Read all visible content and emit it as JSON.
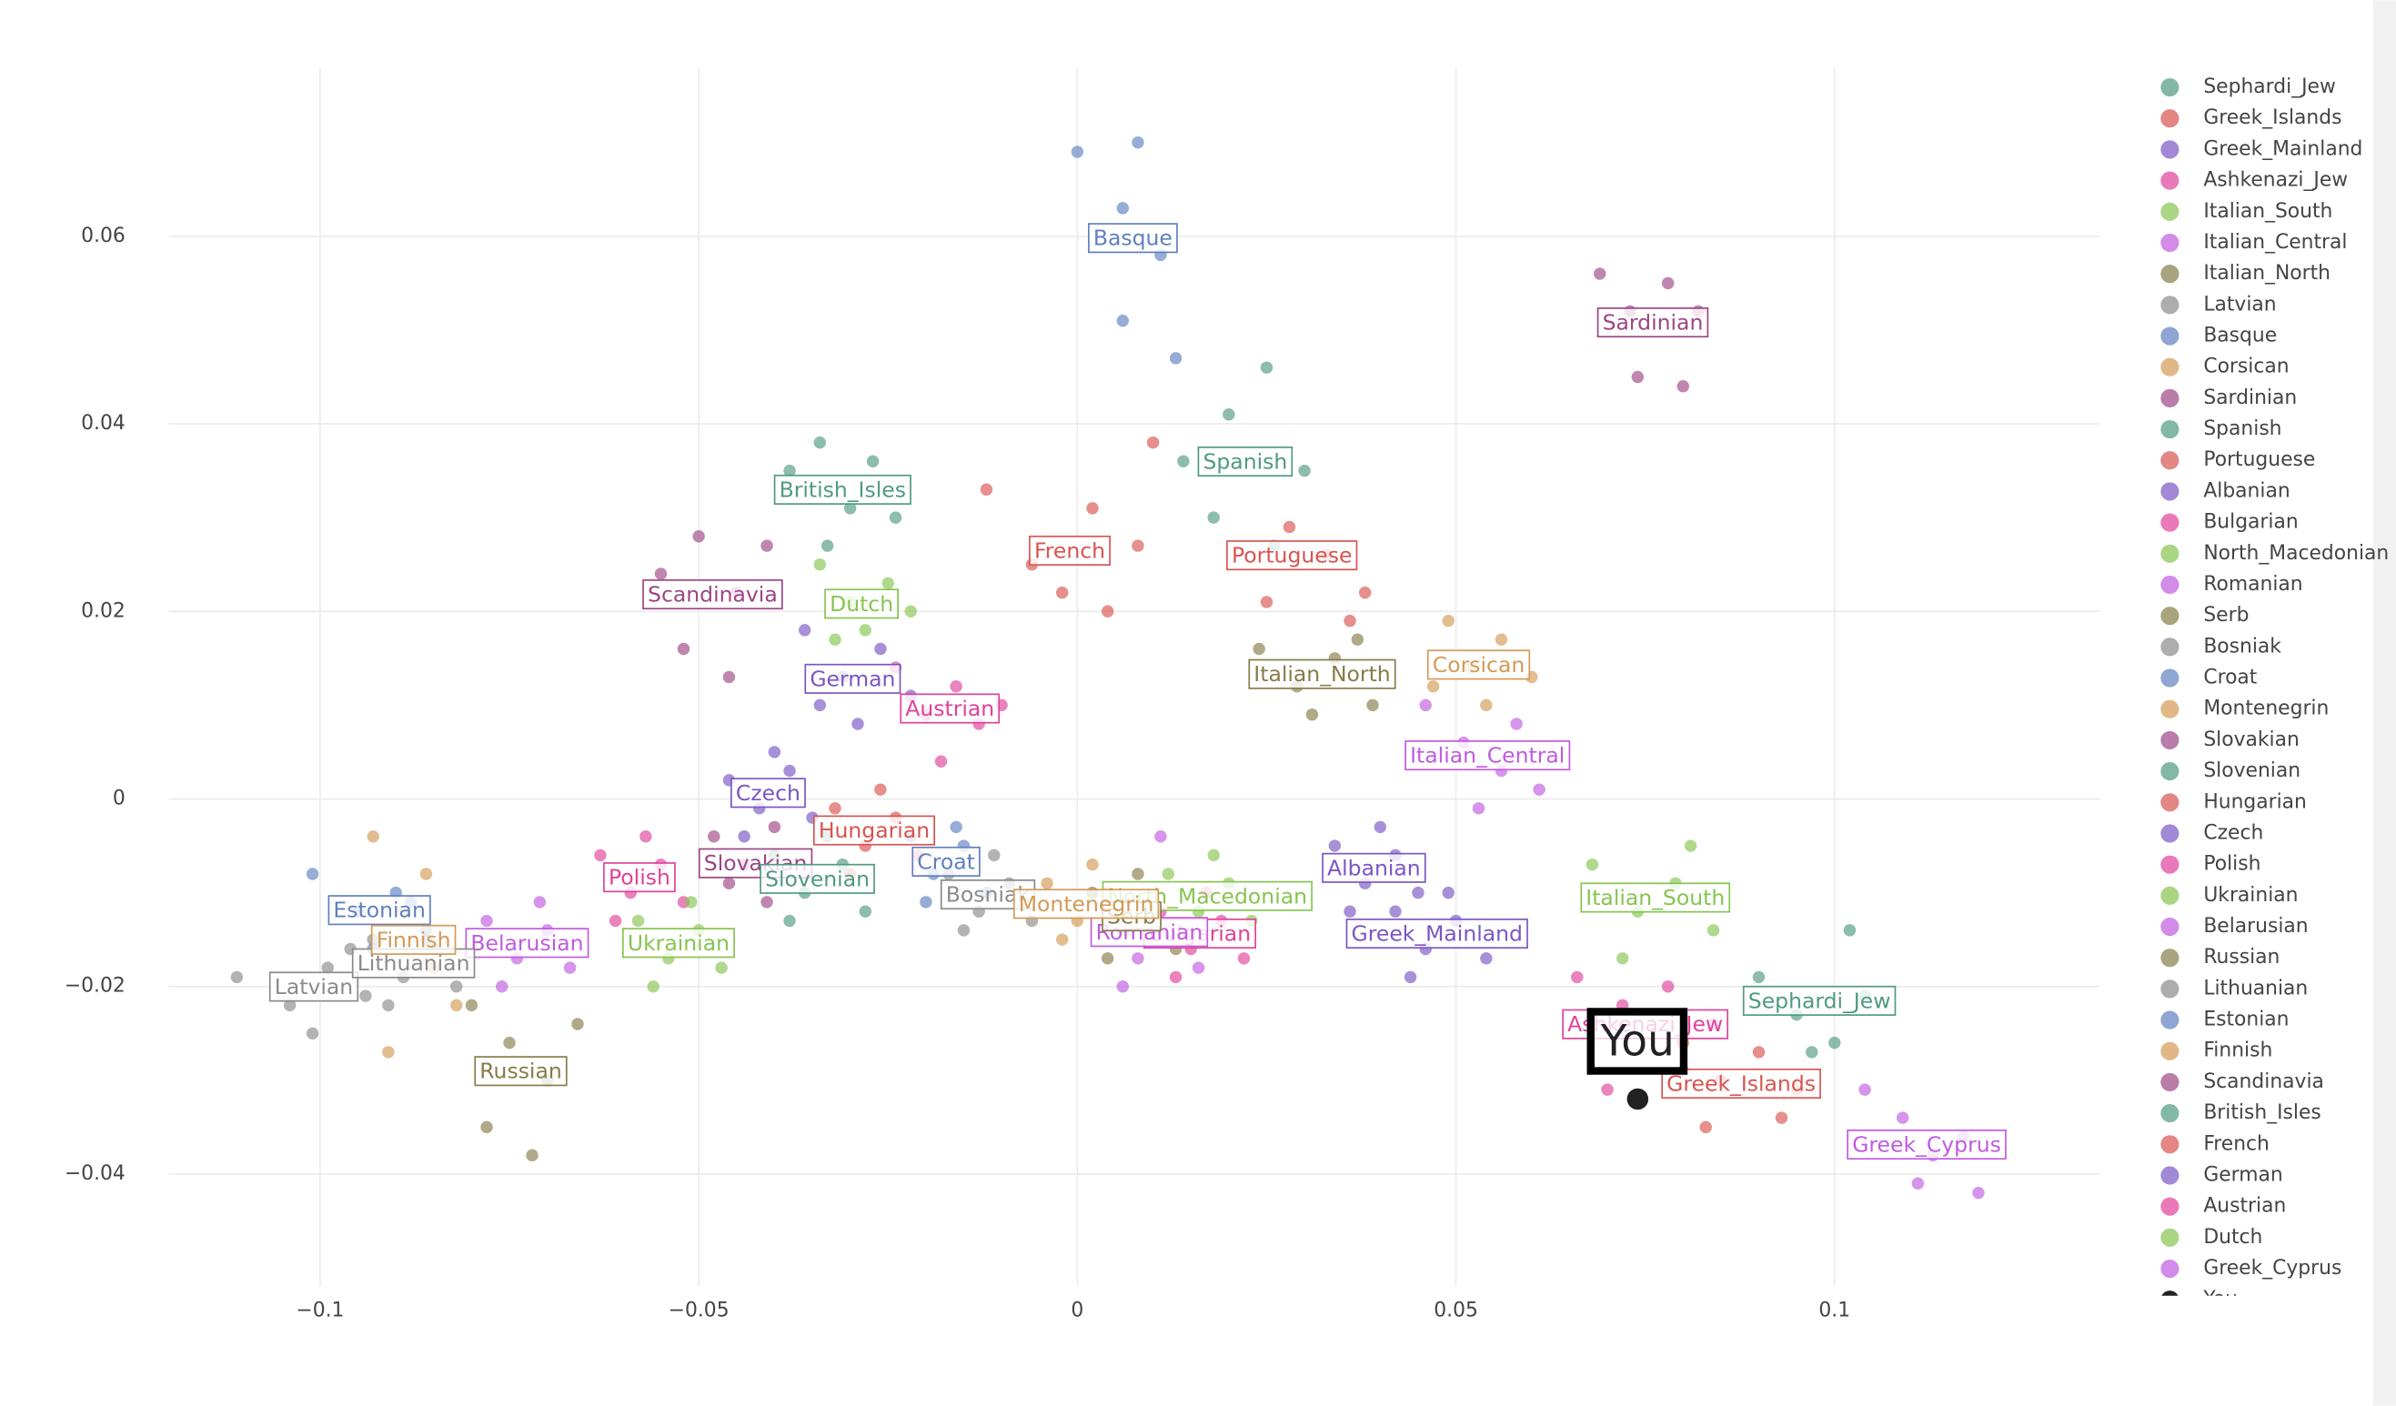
{
  "chart_data": {
    "type": "scatter",
    "xlim": [
      -0.12,
      0.135
    ],
    "ylim": [
      -0.052,
      0.078
    ],
    "xticks": [
      {
        "value": -0.1,
        "label": "−0.1"
      },
      {
        "value": -0.05,
        "label": "−0.05"
      },
      0,
      0.05,
      0.1
    ],
    "yticks": [
      {
        "value": -0.04,
        "label": "−0.04"
      },
      {
        "value": -0.02,
        "label": "−0.02"
      },
      0,
      0.02,
      0.04,
      0.06
    ],
    "grid": true,
    "legend": "right",
    "series": [
      {
        "name": "Sephardi_Jew",
        "color": "#4f9a82",
        "x": [
          0.09,
          0.095,
          0.1,
          0.104,
          0.097,
          0.102
        ],
        "values": [
          -0.019,
          -0.023,
          -0.026,
          -0.021,
          -0.027,
          -0.014
        ]
      },
      {
        "name": "Greek_Islands",
        "color": "#d9534f",
        "x": [
          0.08,
          0.085,
          0.09,
          0.095,
          0.083,
          0.093
        ],
        "values": [
          -0.026,
          -0.03,
          -0.027,
          -0.031,
          -0.035,
          -0.034
        ]
      },
      {
        "name": "Greek_Mainland",
        "color": "#7a55c4",
        "x": [
          0.042,
          0.046,
          0.05,
          0.054,
          0.044,
          0.049
        ],
        "values": [
          -0.012,
          -0.016,
          -0.013,
          -0.017,
          -0.019,
          -0.01
        ]
      },
      {
        "name": "Ashkenazi_Jew",
        "color": "#e0409a",
        "x": [
          0.066,
          0.072,
          0.078,
          0.084,
          0.07,
          0.08
        ],
        "values": [
          -0.019,
          -0.022,
          -0.02,
          -0.024,
          -0.031,
          -0.029
        ]
      },
      {
        "name": "Italian_South",
        "color": "#86c550",
        "x": [
          0.068,
          0.074,
          0.079,
          0.084,
          0.072,
          0.081
        ],
        "values": [
          -0.007,
          -0.012,
          -0.009,
          -0.014,
          -0.017,
          -0.005
        ]
      },
      {
        "name": "Italian_Central",
        "color": "#c05ae0",
        "x": [
          0.046,
          0.051,
          0.056,
          0.061,
          0.053,
          0.058
        ],
        "values": [
          0.01,
          0.006,
          0.003,
          0.001,
          -0.001,
          0.008
        ]
      },
      {
        "name": "Italian_North",
        "color": "#857c48",
        "x": [
          0.024,
          0.029,
          0.034,
          0.039,
          0.031,
          0.037
        ],
        "values": [
          0.016,
          0.012,
          0.015,
          0.01,
          0.009,
          0.017
        ]
      },
      {
        "name": "Latvian",
        "color": "#8a8a8a",
        "x": [
          -0.111,
          -0.104,
          -0.099,
          -0.094,
          -0.101,
          -0.096
        ],
        "values": [
          -0.019,
          -0.022,
          -0.018,
          -0.021,
          -0.025,
          -0.016
        ]
      },
      {
        "name": "Basque",
        "color": "#5f7fc0",
        "x": [
          0.0,
          0.008,
          0.006,
          0.011,
          0.006,
          0.013
        ],
        "values": [
          0.069,
          0.07,
          0.063,
          0.058,
          0.051,
          0.047
        ]
      },
      {
        "name": "Corsican",
        "color": "#d39a55",
        "x": [
          0.049,
          0.052,
          0.056,
          0.06,
          0.054,
          0.047
        ],
        "values": [
          0.019,
          0.014,
          0.017,
          0.013,
          0.01,
          0.012
        ]
      },
      {
        "name": "Sardinian",
        "color": "#9c4584",
        "x": [
          0.069,
          0.073,
          0.078,
          0.082,
          0.074,
          0.08
        ],
        "values": [
          0.056,
          0.052,
          0.055,
          0.052,
          0.045,
          0.044
        ]
      },
      {
        "name": "Spanish",
        "color": "#4f9a82",
        "x": [
          0.014,
          0.02,
          0.025,
          0.03,
          0.018,
          0.026
        ],
        "values": [
          0.036,
          0.041,
          0.046,
          0.035,
          0.03,
          0.027
        ]
      },
      {
        "name": "Portuguese",
        "color": "#d9534f",
        "x": [
          0.01,
          0.028,
          0.033,
          0.038,
          0.025,
          0.036
        ],
        "values": [
          0.038,
          0.029,
          0.026,
          0.022,
          0.021,
          0.019
        ]
      },
      {
        "name": "Albanian",
        "color": "#7a55c4",
        "x": [
          0.034,
          0.038,
          0.042,
          0.045,
          0.036,
          0.04
        ],
        "values": [
          -0.005,
          -0.009,
          -0.006,
          -0.01,
          -0.012,
          -0.003
        ]
      },
      {
        "name": "Bulgarian",
        "color": "#e0409a",
        "x": [
          0.011,
          0.015,
          0.019,
          0.022,
          0.013,
          0.017
        ],
        "values": [
          -0.012,
          -0.016,
          -0.013,
          -0.017,
          -0.019,
          -0.01
        ]
      },
      {
        "name": "North_Macedonian",
        "color": "#86c550",
        "x": [
          0.012,
          0.016,
          0.02,
          0.023,
          0.014,
          0.018
        ],
        "values": [
          -0.008,
          -0.012,
          -0.009,
          -0.013,
          -0.015,
          -0.006
        ]
      },
      {
        "name": "Romanian",
        "color": "#c05ae0",
        "x": [
          0.004,
          0.008,
          0.012,
          0.016,
          0.006,
          0.011
        ],
        "values": [
          -0.013,
          -0.017,
          -0.014,
          -0.018,
          -0.02,
          -0.004
        ]
      },
      {
        "name": "Serb",
        "color": "#857c48",
        "x": [
          0.002,
          0.006,
          0.01,
          0.013,
          0.004,
          0.008
        ],
        "values": [
          -0.01,
          -0.014,
          -0.011,
          -0.016,
          -0.017,
          -0.008
        ]
      },
      {
        "name": "Bosniak",
        "color": "#8a8a8a",
        "x": [
          -0.017,
          -0.013,
          -0.009,
          -0.006,
          -0.015,
          -0.011
        ],
        "values": [
          -0.008,
          -0.012,
          -0.009,
          -0.013,
          -0.014,
          -0.006
        ]
      },
      {
        "name": "Croat",
        "color": "#5f7fc0",
        "x": [
          -0.022,
          -0.019,
          -0.015,
          -0.012,
          -0.02,
          -0.016
        ],
        "values": [
          -0.004,
          -0.008,
          -0.005,
          -0.01,
          -0.011,
          -0.003
        ]
      },
      {
        "name": "Montenegrin",
        "color": "#d39a55",
        "x": [
          -0.004,
          0.0,
          0.004,
          0.007,
          -0.002,
          0.002
        ],
        "values": [
          -0.009,
          -0.013,
          -0.01,
          -0.014,
          -0.015,
          -0.007
        ]
      },
      {
        "name": "Slovakian",
        "color": "#9c4584",
        "x": [
          -0.048,
          -0.044,
          -0.04,
          -0.036,
          -0.046,
          -0.041
        ],
        "values": [
          -0.004,
          -0.007,
          -0.003,
          -0.008,
          -0.009,
          -0.011
        ]
      },
      {
        "name": "Slovenian",
        "color": "#4f9a82",
        "x": [
          -0.04,
          -0.036,
          -0.031,
          -0.028,
          -0.038,
          -0.033
        ],
        "values": [
          -0.006,
          -0.01,
          -0.007,
          -0.012,
          -0.013,
          -0.004
        ]
      },
      {
        "name": "Hungarian",
        "color": "#d9534f",
        "x": [
          -0.032,
          -0.028,
          -0.024,
          -0.021,
          -0.03,
          -0.026
        ],
        "values": [
          -0.001,
          -0.005,
          -0.002,
          -0.006,
          -0.008,
          0.001
        ]
      },
      {
        "name": "Czech",
        "color": "#7a55c4",
        "x": [
          -0.046,
          -0.042,
          -0.038,
          -0.035,
          -0.044,
          -0.04
        ],
        "values": [
          0.002,
          -0.001,
          0.003,
          -0.002,
          -0.004,
          0.005
        ]
      },
      {
        "name": "Polish",
        "color": "#e0409a",
        "x": [
          -0.063,
          -0.059,
          -0.055,
          -0.052,
          -0.061,
          -0.057
        ],
        "values": [
          -0.006,
          -0.01,
          -0.007,
          -0.011,
          -0.013,
          -0.004
        ]
      },
      {
        "name": "Ukrainian",
        "color": "#86c550",
        "x": [
          -0.058,
          -0.054,
          -0.05,
          -0.047,
          -0.056,
          -0.051
        ],
        "values": [
          -0.013,
          -0.017,
          -0.014,
          -0.018,
          -0.02,
          -0.011
        ]
      },
      {
        "name": "Belarusian",
        "color": "#c05ae0",
        "x": [
          -0.078,
          -0.074,
          -0.07,
          -0.067,
          -0.076,
          -0.071
        ],
        "values": [
          -0.013,
          -0.017,
          -0.014,
          -0.018,
          -0.02,
          -0.011
        ]
      },
      {
        "name": "Russian",
        "color": "#857c48",
        "x": [
          -0.08,
          -0.075,
          -0.07,
          -0.066,
          -0.078,
          -0.072
        ],
        "values": [
          -0.022,
          -0.026,
          -0.03,
          -0.024,
          -0.035,
          -0.038
        ]
      },
      {
        "name": "Lithuanian",
        "color": "#8a8a8a",
        "x": [
          -0.093,
          -0.089,
          -0.085,
          -0.082,
          -0.091,
          -0.086
        ],
        "values": [
          -0.015,
          -0.019,
          -0.016,
          -0.02,
          -0.022,
          -0.014
        ]
      },
      {
        "name": "Estonian",
        "color": "#5f7fc0",
        "x": [
          -0.101,
          -0.095,
          -0.09,
          -0.086,
          -0.093,
          -0.088
        ],
        "values": [
          -0.008,
          -0.012,
          -0.01,
          -0.015,
          -0.016,
          -0.011
        ]
      },
      {
        "name": "Finnish",
        "color": "#d39a55",
        "x": [
          -0.093,
          -0.089,
          -0.085,
          -0.082,
          -0.091,
          -0.086
        ],
        "values": [
          -0.004,
          -0.012,
          -0.018,
          -0.022,
          -0.027,
          -0.008
        ]
      },
      {
        "name": "Scandinavia",
        "color": "#9c4584",
        "x": [
          -0.055,
          -0.05,
          -0.045,
          -0.041,
          -0.052,
          -0.046
        ],
        "values": [
          0.024,
          0.028,
          0.022,
          0.027,
          0.016,
          0.013
        ]
      },
      {
        "name": "British_Isles",
        "color": "#4f9a82",
        "x": [
          -0.038,
          -0.034,
          -0.03,
          -0.027,
          -0.033,
          -0.024
        ],
        "values": [
          0.035,
          0.038,
          0.031,
          0.036,
          0.027,
          0.03
        ]
      },
      {
        "name": "French",
        "color": "#d9534f",
        "x": [
          -0.012,
          -0.006,
          0.002,
          0.008,
          -0.002,
          0.004
        ],
        "values": [
          0.033,
          0.025,
          0.031,
          0.027,
          0.022,
          0.02
        ]
      },
      {
        "name": "German",
        "color": "#7a55c4",
        "x": [
          -0.036,
          -0.031,
          -0.026,
          -0.022,
          -0.029,
          -0.034
        ],
        "values": [
          0.018,
          0.013,
          0.016,
          0.011,
          0.008,
          0.01
        ]
      },
      {
        "name": "Austrian",
        "color": "#e0409a",
        "x": [
          -0.024,
          -0.02,
          -0.016,
          -0.013,
          -0.018,
          -0.01
        ],
        "values": [
          0.014,
          0.009,
          0.012,
          0.008,
          0.004,
          0.01
        ]
      },
      {
        "name": "Dutch",
        "color": "#86c550",
        "x": [
          -0.034,
          -0.03,
          -0.025,
          -0.028,
          -0.022,
          -0.032
        ],
        "values": [
          0.025,
          0.021,
          0.023,
          0.018,
          0.02,
          0.017
        ]
      },
      {
        "name": "Greek_Cyprus",
        "color": "#c05ae0",
        "x": [
          0.104,
          0.109,
          0.113,
          0.117,
          0.111,
          0.119
        ],
        "values": [
          -0.031,
          -0.034,
          -0.038,
          -0.036,
          -0.041,
          -0.042
        ]
      },
      {
        "name": "You",
        "color": "#222222",
        "x": [
          0.074
        ],
        "values": [
          -0.032
        ]
      }
    ]
  }
}
